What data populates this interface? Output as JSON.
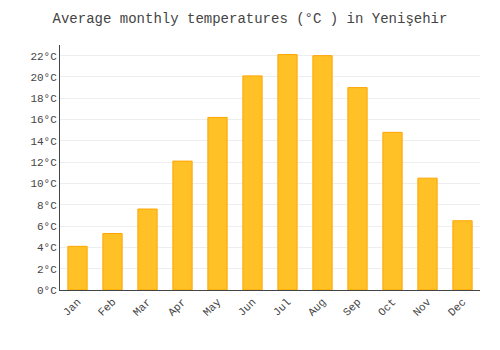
{
  "chart_data": {
    "type": "bar",
    "title": "Average monthly temperatures (°C ) in Yenişehir",
    "categories": [
      "Jan",
      "Feb",
      "Mar",
      "Apr",
      "May",
      "Jun",
      "Jul",
      "Aug",
      "Sep",
      "Oct",
      "Nov",
      "Dec"
    ],
    "values": [
      4.1,
      5.3,
      7.6,
      12.1,
      16.2,
      20.1,
      22.1,
      22.0,
      19.0,
      14.8,
      10.5,
      6.5
    ],
    "color": "#FFC125",
    "ylim": [
      0,
      23
    ],
    "yticks": [
      {
        "value": 0,
        "label": "0°C"
      },
      {
        "value": 2,
        "label": "2°C"
      },
      {
        "value": 4,
        "label": "4°C"
      },
      {
        "value": 6,
        "label": "6°C"
      },
      {
        "value": 8,
        "label": "8°C"
      },
      {
        "value": 10,
        "label": "10°C"
      },
      {
        "value": 12,
        "label": "12°C"
      },
      {
        "value": 14,
        "label": "14°C"
      },
      {
        "value": 16,
        "label": "16°C"
      },
      {
        "value": 18,
        "label": "18°C"
      },
      {
        "value": 20,
        "label": "20°C"
      },
      {
        "value": 22,
        "label": "22°C"
      }
    ],
    "grid": true
  }
}
